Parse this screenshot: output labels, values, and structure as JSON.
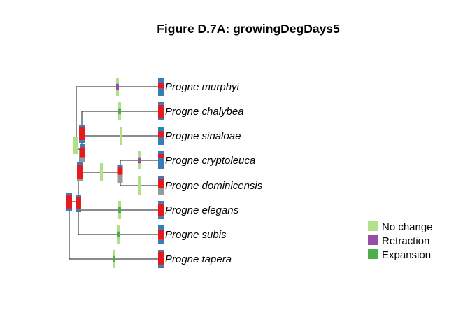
{
  "figure": {
    "title": "Figure D.7A: growingDegDays5"
  },
  "colors": {
    "tree_line": "#1a1a1a",
    "no_change": "#b2df8a",
    "retraction": "#984ea3",
    "expansion": "#4daf4a",
    "range_high": "#e41a1c",
    "range_low": "#377eb8",
    "range_gray": "#999999"
  },
  "legend": {
    "items": [
      {
        "key": "no_change",
        "label": "No change",
        "color": "#b2df8a"
      },
      {
        "key": "retraction",
        "label": "Retraction",
        "color": "#984ea3"
      },
      {
        "key": "expansion",
        "label": "Expansion",
        "color": "#4daf4a"
      }
    ]
  },
  "tree": {
    "taxa": [
      "Progne murphyi",
      "Progne chalybea",
      "Progne sinaloae",
      "Progne cryptoleuca",
      "Progne dominicensis",
      "Progne elegans",
      "Progne subis",
      "Progne tapera"
    ]
  }
}
